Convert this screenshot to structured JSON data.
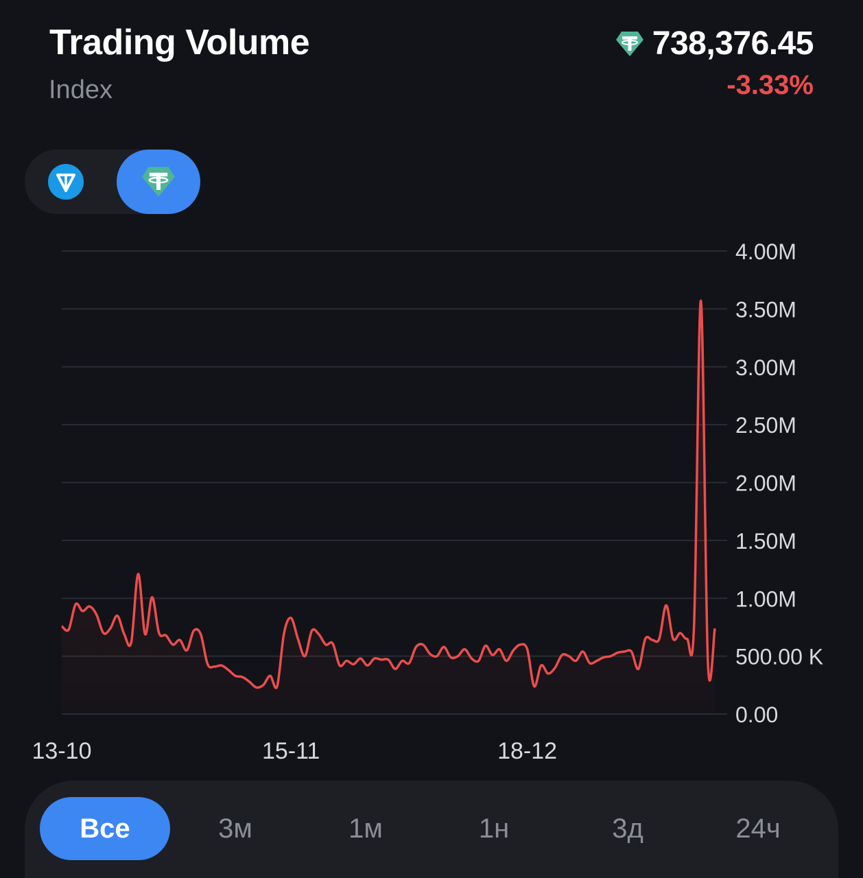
{
  "header": {
    "title": "Trading Volume",
    "subtitle": "Index",
    "price": "738,376.45",
    "change": "-3.33%",
    "price_icon": "tether-icon"
  },
  "currency_toggle": {
    "options": [
      {
        "icon": "ton-icon",
        "selected": false
      },
      {
        "icon": "tether-icon",
        "selected": true
      }
    ]
  },
  "periods": [
    {
      "label": "Все",
      "active": true
    },
    {
      "label": "3м",
      "active": false
    },
    {
      "label": "1м",
      "active": false
    },
    {
      "label": "1н",
      "active": false
    },
    {
      "label": "3д",
      "active": false
    },
    {
      "label": "24ч",
      "active": false
    }
  ],
  "colors": {
    "background": "#121318",
    "panel": "#1d1f25",
    "accent": "#3c87f2",
    "negative": "#ec4d4d",
    "tether": "#4fb596",
    "ton": "#1a9ae6"
  },
  "chart_data": {
    "type": "line",
    "title": "",
    "xlabel": "",
    "ylabel": "",
    "y_axis_position": "right",
    "grid": true,
    "ylim": [
      0,
      4000000
    ],
    "yticks": [
      0,
      500000,
      1000000,
      1500000,
      2000000,
      2500000,
      3000000,
      3500000,
      4000000
    ],
    "ytick_labels": [
      "0.00",
      "500.00 K",
      "1.00M",
      "1.50M",
      "2.00M",
      "2.50M",
      "3.00M",
      "3.50M",
      "4.00M"
    ],
    "xticks": [
      {
        "index": 0,
        "label": "13-10"
      },
      {
        "index": 33,
        "label": "15-11"
      },
      {
        "index": 67,
        "label": "18-12"
      }
    ],
    "series": [
      {
        "values": [
          760000,
          730000,
          950000,
          890000,
          930000,
          860000,
          700000,
          740000,
          850000,
          690000,
          620000,
          1210000,
          690000,
          1010000,
          700000,
          680000,
          600000,
          640000,
          550000,
          720000,
          690000,
          430000,
          410000,
          420000,
          380000,
          330000,
          320000,
          280000,
          230000,
          250000,
          330000,
          240000,
          700000,
          830000,
          650000,
          500000,
          720000,
          690000,
          600000,
          610000,
          420000,
          460000,
          430000,
          480000,
          420000,
          480000,
          470000,
          470000,
          390000,
          460000,
          440000,
          580000,
          600000,
          520000,
          500000,
          580000,
          490000,
          500000,
          560000,
          480000,
          460000,
          590000,
          510000,
          560000,
          460000,
          550000,
          600000,
          560000,
          240000,
          420000,
          350000,
          400000,
          510000,
          500000,
          460000,
          540000,
          440000,
          460000,
          490000,
          500000,
          530000,
          540000,
          540000,
          390000,
          650000,
          640000,
          650000,
          940000,
          650000,
          700000,
          650000,
          750000,
          3570000,
          450000,
          740000
        ]
      }
    ]
  }
}
